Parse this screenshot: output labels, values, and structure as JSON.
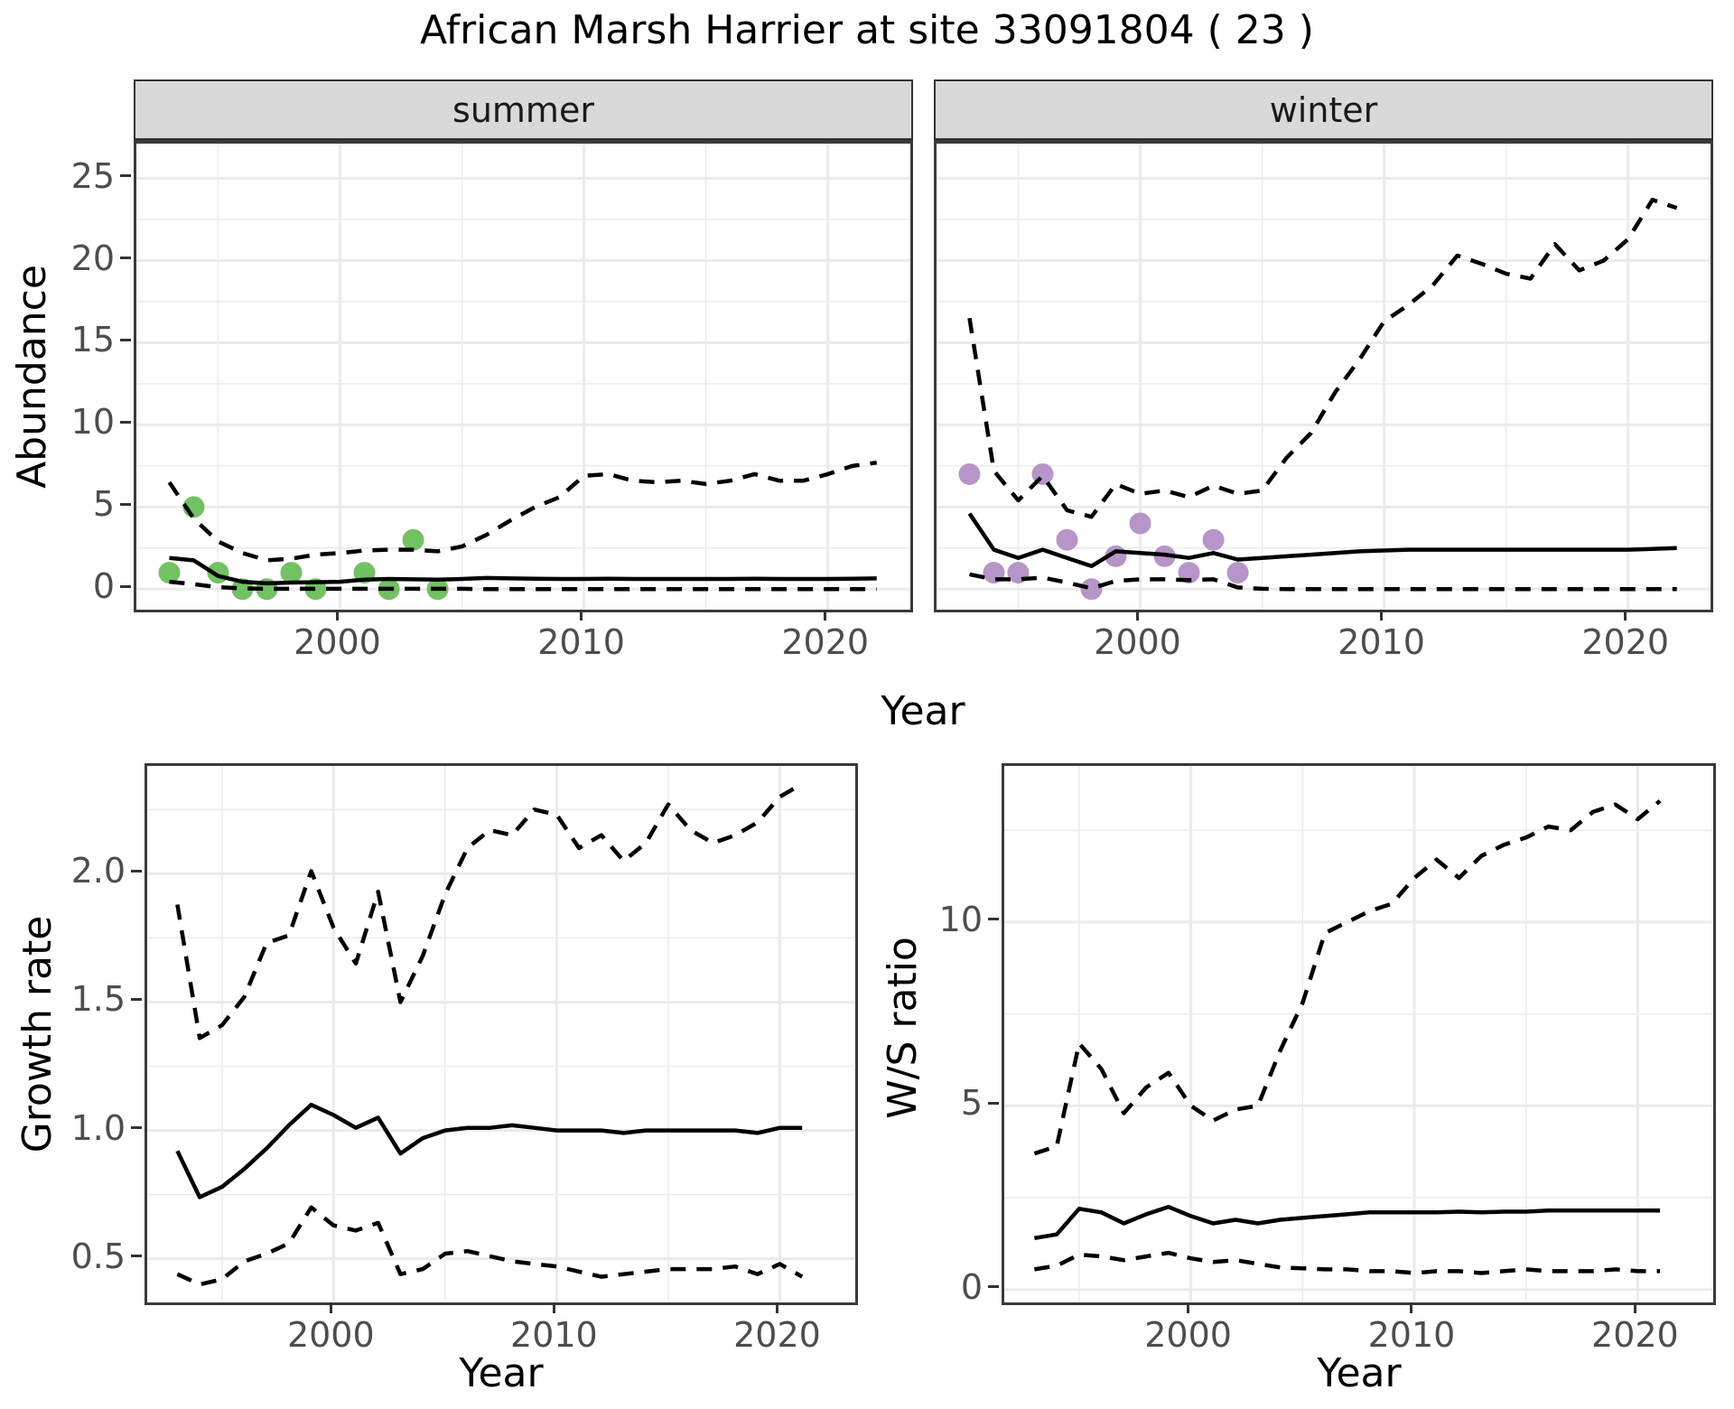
{
  "title": "African Marsh Harrier at site 33091804 ( 23 )",
  "facets": {
    "summer": "summer",
    "winter": "winter"
  },
  "axis_titles": {
    "x": "Year",
    "y_abundance": "Abundance",
    "y_growth": "Growth rate",
    "y_ws": "W/S ratio"
  },
  "colors": {
    "summer_points": "#72c163",
    "winter_points": "#b695c8",
    "line": "#000000",
    "strip_bg": "#d9d9d9",
    "gridline": "#ebebeb",
    "panel_border": "#3a3a3a",
    "tick_text": "#4d4d4d"
  },
  "chart_data": [
    {
      "id": "abundance-summer",
      "type": "line",
      "facet": "summer",
      "xlabel": "Year",
      "ylabel": "Abundance",
      "x_range": [
        1991.65,
        2023.38
      ],
      "y_range": [
        -1.25,
        27.12
      ],
      "x_ticks": [
        2000,
        2010,
        2020
      ],
      "x_tick_labels": [
        "2000",
        "2010",
        "2020"
      ],
      "x_minor": [
        1995,
        2005,
        2015
      ],
      "y_ticks": [
        0,
        5,
        10,
        15,
        20,
        25
      ],
      "y_tick_labels": [
        "0",
        "5",
        "10",
        "15",
        "20",
        "25"
      ],
      "y_minor": [
        2.5,
        7.5,
        12.5,
        17.5,
        22.5
      ],
      "points": {
        "name": "observed-summer-counts",
        "color": "#72c163",
        "x": [
          1993,
          1994,
          1995,
          1996,
          1997,
          1998,
          1999,
          2001,
          2002,
          2003,
          2004
        ],
        "y": [
          1,
          5,
          1,
          0,
          0,
          1,
          0,
          1,
          0,
          3,
          0
        ]
      },
      "series": [
        {
          "name": "upper-95ci",
          "style": "dashed",
          "x": [
            1993,
            1994,
            1995,
            1996,
            1997,
            1998,
            1999,
            2000,
            2001,
            2002,
            2003,
            2004,
            2005,
            2006,
            2007,
            2008,
            2009,
            2010,
            2011,
            2012,
            2013,
            2014,
            2015,
            2016,
            2017,
            2018,
            2019,
            2020,
            2021,
            2022
          ],
          "y": [
            6.5,
            4.3,
            2.9,
            2.2,
            1.75,
            1.85,
            2.1,
            2.2,
            2.35,
            2.4,
            2.4,
            2.3,
            2.6,
            3.3,
            4.2,
            5.0,
            5.6,
            6.9,
            7.0,
            6.6,
            6.5,
            6.6,
            6.4,
            6.6,
            7.0,
            6.6,
            6.6,
            7.0,
            7.5,
            7.7
          ]
        },
        {
          "name": "median",
          "style": "solid",
          "x": [
            1993,
            1994,
            1995,
            1996,
            1997,
            1998,
            1999,
            2000,
            2001,
            2002,
            2003,
            2004,
            2005,
            2006,
            2007,
            2008,
            2009,
            2010,
            2011,
            2012,
            2013,
            2014,
            2015,
            2016,
            2017,
            2018,
            2019,
            2020,
            2021,
            2022
          ],
          "y": [
            1.9,
            1.75,
            0.8,
            0.45,
            0.35,
            0.4,
            0.42,
            0.45,
            0.58,
            0.62,
            0.6,
            0.58,
            0.62,
            0.68,
            0.65,
            0.63,
            0.62,
            0.62,
            0.63,
            0.62,
            0.62,
            0.62,
            0.62,
            0.62,
            0.63,
            0.62,
            0.62,
            0.62,
            0.63,
            0.65
          ]
        },
        {
          "name": "lower-95ci",
          "style": "dashed",
          "x": [
            1993,
            1994,
            1995,
            1996,
            1997,
            1998,
            1999,
            2000,
            2001,
            2002,
            2003,
            2004,
            2005,
            2006,
            2007,
            2008,
            2009,
            2010,
            2011,
            2012,
            2013,
            2014,
            2015,
            2016,
            2017,
            2018,
            2019,
            2020,
            2021,
            2022
          ],
          "y": [
            0.45,
            0.3,
            0.12,
            0.05,
            0.02,
            0.02,
            0.02,
            0.02,
            0.02,
            0.02,
            0.02,
            0.02,
            0.02,
            0,
            0,
            0,
            0,
            0,
            0,
            0,
            0,
            0,
            0,
            0,
            0,
            0,
            0,
            0,
            0,
            0
          ]
        }
      ]
    },
    {
      "id": "abundance-winter",
      "type": "line",
      "facet": "winter",
      "xlabel": "Year",
      "ylabel": "Abundance",
      "x_range": [
        1991.65,
        2023.38
      ],
      "y_range": [
        -1.25,
        27.12
      ],
      "x_ticks": [
        2000,
        2010,
        2020
      ],
      "x_tick_labels": [
        "2000",
        "2010",
        "2020"
      ],
      "x_minor": [
        1995,
        2005,
        2015
      ],
      "y_ticks": [
        0,
        5,
        10,
        15,
        20,
        25
      ],
      "y_tick_labels": [
        "0",
        "5",
        "10",
        "15",
        "20",
        "25"
      ],
      "y_minor": [
        2.5,
        7.5,
        12.5,
        17.5,
        22.5
      ],
      "points": {
        "name": "observed-winter-counts",
        "color": "#b695c8",
        "x": [
          1993,
          1994,
          1995,
          1996,
          1997,
          1998,
          1999,
          2000,
          2001,
          2002,
          2003,
          2004
        ],
        "y": [
          7,
          1,
          1,
          7,
          3,
          0,
          2,
          4,
          2,
          1,
          3,
          1
        ]
      },
      "series": [
        {
          "name": "upper-95ci",
          "style": "dashed",
          "x": [
            1993,
            1994,
            1995,
            1996,
            1997,
            1998,
            1999,
            2000,
            2001,
            2002,
            2003,
            2004,
            2005,
            2006,
            2007,
            2008,
            2009,
            2010,
            2011,
            2012,
            2013,
            2014,
            2015,
            2016,
            2017,
            2018,
            2019,
            2020,
            2021,
            2022
          ],
          "y": [
            16.5,
            7.2,
            5.4,
            6.9,
            4.8,
            4.4,
            6.4,
            5.8,
            6.0,
            5.6,
            6.3,
            5.8,
            6.0,
            8.0,
            9.5,
            12.0,
            14.0,
            16.3,
            17.3,
            18.5,
            20.3,
            19.8,
            19.2,
            18.9,
            21.0,
            19.4,
            20.0,
            21.3,
            23.7,
            23.2
          ]
        },
        {
          "name": "median",
          "style": "solid",
          "x": [
            1993,
            1994,
            1995,
            1996,
            1997,
            1998,
            1999,
            2000,
            2001,
            2002,
            2003,
            2004,
            2005,
            2006,
            2007,
            2008,
            2009,
            2010,
            2011,
            2012,
            2013,
            2014,
            2015,
            2016,
            2017,
            2018,
            2019,
            2020,
            2021,
            2022
          ],
          "y": [
            4.6,
            2.4,
            1.9,
            2.4,
            1.9,
            1.4,
            2.3,
            2.2,
            2.1,
            1.9,
            2.2,
            1.8,
            1.9,
            2.0,
            2.1,
            2.2,
            2.3,
            2.35,
            2.4,
            2.4,
            2.4,
            2.4,
            2.4,
            2.4,
            2.4,
            2.4,
            2.4,
            2.4,
            2.45,
            2.5
          ]
        },
        {
          "name": "lower-95ci",
          "style": "dashed",
          "x": [
            1993,
            1994,
            1995,
            1996,
            1997,
            1998,
            1999,
            2000,
            2001,
            2002,
            2003,
            2004,
            2005,
            2006,
            2007,
            2008,
            2009,
            2010,
            2011,
            2012,
            2013,
            2014,
            2015,
            2016,
            2017,
            2018,
            2019,
            2020,
            2021,
            2022
          ],
          "y": [
            0.9,
            0.6,
            0.6,
            0.7,
            0.4,
            0.05,
            0.5,
            0.6,
            0.6,
            0.55,
            0.6,
            0.1,
            0.02,
            0,
            0,
            0,
            0,
            0,
            0,
            0,
            0,
            0,
            0,
            0,
            0,
            0,
            0,
            0,
            0,
            0
          ]
        }
      ]
    },
    {
      "id": "growth-rate",
      "type": "line",
      "facet": null,
      "xlabel": "Year",
      "ylabel": "Growth rate",
      "x_range": [
        1991.65,
        2023.38
      ],
      "y_range": [
        0.33,
        2.42
      ],
      "x_ticks": [
        2000,
        2010,
        2020
      ],
      "x_tick_labels": [
        "2000",
        "2010",
        "2020"
      ],
      "x_minor": [
        1995,
        2005,
        2015
      ],
      "y_ticks": [
        0.5,
        1.0,
        1.5,
        2.0
      ],
      "y_tick_labels": [
        "0.5",
        "1.0",
        "1.5",
        "2.0"
      ],
      "y_minor": [
        0.75,
        1.25,
        1.75,
        2.25
      ],
      "points": null,
      "series": [
        {
          "name": "upper-95ci",
          "style": "dashed",
          "x": [
            1993,
            1994,
            1995,
            1996,
            1997,
            1998,
            1999,
            2000,
            2001,
            2002,
            2003,
            2004,
            2005,
            2006,
            2007,
            2008,
            2009,
            2010,
            2011,
            2012,
            2013,
            2014,
            2015,
            2016,
            2017,
            2018,
            2019,
            2020,
            2021
          ],
          "y": [
            1.88,
            1.36,
            1.41,
            1.52,
            1.73,
            1.76,
            2.01,
            1.79,
            1.65,
            1.93,
            1.5,
            1.68,
            1.92,
            2.1,
            2.17,
            2.15,
            2.25,
            2.23,
            2.1,
            2.15,
            2.05,
            2.12,
            2.27,
            2.17,
            2.12,
            2.15,
            2.2,
            2.3,
            2.35
          ]
        },
        {
          "name": "median",
          "style": "solid",
          "x": [
            1993,
            1994,
            1995,
            1996,
            1997,
            1998,
            1999,
            2000,
            2001,
            2002,
            2003,
            2004,
            2005,
            2006,
            2007,
            2008,
            2009,
            2010,
            2011,
            2012,
            2013,
            2014,
            2015,
            2016,
            2017,
            2018,
            2019,
            2020,
            2021
          ],
          "y": [
            0.92,
            0.74,
            0.78,
            0.85,
            0.93,
            1.02,
            1.1,
            1.06,
            1.01,
            1.05,
            0.91,
            0.97,
            1.0,
            1.01,
            1.01,
            1.02,
            1.01,
            1.0,
            1.0,
            1.0,
            0.99,
            1.0,
            1.0,
            1.0,
            1.0,
            1.0,
            0.99,
            1.01,
            1.01
          ]
        },
        {
          "name": "lower-95ci",
          "style": "dashed",
          "x": [
            1993,
            1994,
            1995,
            1996,
            1997,
            1998,
            1999,
            2000,
            2001,
            2002,
            2003,
            2004,
            2005,
            2006,
            2007,
            2008,
            2009,
            2010,
            2011,
            2012,
            2013,
            2014,
            2015,
            2016,
            2017,
            2018,
            2019,
            2020,
            2021
          ],
          "y": [
            0.44,
            0.4,
            0.42,
            0.49,
            0.52,
            0.56,
            0.7,
            0.63,
            0.61,
            0.64,
            0.44,
            0.46,
            0.52,
            0.53,
            0.51,
            0.49,
            0.48,
            0.47,
            0.45,
            0.43,
            0.44,
            0.45,
            0.46,
            0.46,
            0.46,
            0.47,
            0.44,
            0.48,
            0.43
          ]
        }
      ]
    },
    {
      "id": "ws-ratio",
      "type": "line",
      "facet": null,
      "xlabel": "Year",
      "ylabel": "W/S ratio",
      "x_range": [
        1991.65,
        2023.38
      ],
      "y_range": [
        -0.35,
        14.25
      ],
      "x_ticks": [
        2000,
        2010,
        2020
      ],
      "x_tick_labels": [
        "2000",
        "2010",
        "2020"
      ],
      "x_minor": [
        1995,
        2005,
        2015
      ],
      "y_ticks": [
        0,
        5,
        10
      ],
      "y_tick_labels": [
        "0",
        "5",
        "10"
      ],
      "y_minor": [
        2.5,
        7.5,
        12.5
      ],
      "points": null,
      "series": [
        {
          "name": "upper-95ci",
          "style": "dashed",
          "x": [
            1993,
            1994,
            1995,
            1996,
            1997,
            1998,
            1999,
            2000,
            2001,
            2002,
            2003,
            2004,
            2005,
            2006,
            2007,
            2008,
            2009,
            2010,
            2011,
            2012,
            2013,
            2014,
            2015,
            2016,
            2017,
            2018,
            2019,
            2020,
            2021
          ],
          "y": [
            3.7,
            3.9,
            6.7,
            6.0,
            4.8,
            5.5,
            5.9,
            5.0,
            4.6,
            4.9,
            5.0,
            6.5,
            7.8,
            9.7,
            10.0,
            10.3,
            10.5,
            11.2,
            11.7,
            11.2,
            11.8,
            12.1,
            12.3,
            12.6,
            12.5,
            13.0,
            13.2,
            12.8,
            13.3
          ]
        },
        {
          "name": "median",
          "style": "solid",
          "x": [
            1993,
            1994,
            1995,
            1996,
            1997,
            1998,
            1999,
            2000,
            2001,
            2002,
            2003,
            2004,
            2005,
            2006,
            2007,
            2008,
            2009,
            2010,
            2011,
            2012,
            2013,
            2014,
            2015,
            2016,
            2017,
            2018,
            2019,
            2020,
            2021
          ],
          "y": [
            1.4,
            1.5,
            2.2,
            2.1,
            1.8,
            2.05,
            2.25,
            2.0,
            1.8,
            1.9,
            1.8,
            1.9,
            1.95,
            2.0,
            2.05,
            2.1,
            2.1,
            2.1,
            2.1,
            2.12,
            2.1,
            2.12,
            2.12,
            2.15,
            2.15,
            2.15,
            2.15,
            2.15,
            2.15
          ]
        },
        {
          "name": "lower-95ci",
          "style": "dashed",
          "x": [
            1993,
            1994,
            1995,
            1996,
            1997,
            1998,
            1999,
            2000,
            2001,
            2002,
            2003,
            2004,
            2005,
            2006,
            2007,
            2008,
            2009,
            2010,
            2011,
            2012,
            2013,
            2014,
            2015,
            2016,
            2017,
            2018,
            2019,
            2020,
            2021
          ],
          "y": [
            0.55,
            0.65,
            0.95,
            0.9,
            0.8,
            0.9,
            1.0,
            0.85,
            0.75,
            0.8,
            0.7,
            0.6,
            0.58,
            0.55,
            0.55,
            0.5,
            0.5,
            0.45,
            0.5,
            0.5,
            0.45,
            0.5,
            0.55,
            0.5,
            0.5,
            0.5,
            0.55,
            0.5,
            0.5
          ]
        }
      ]
    }
  ]
}
